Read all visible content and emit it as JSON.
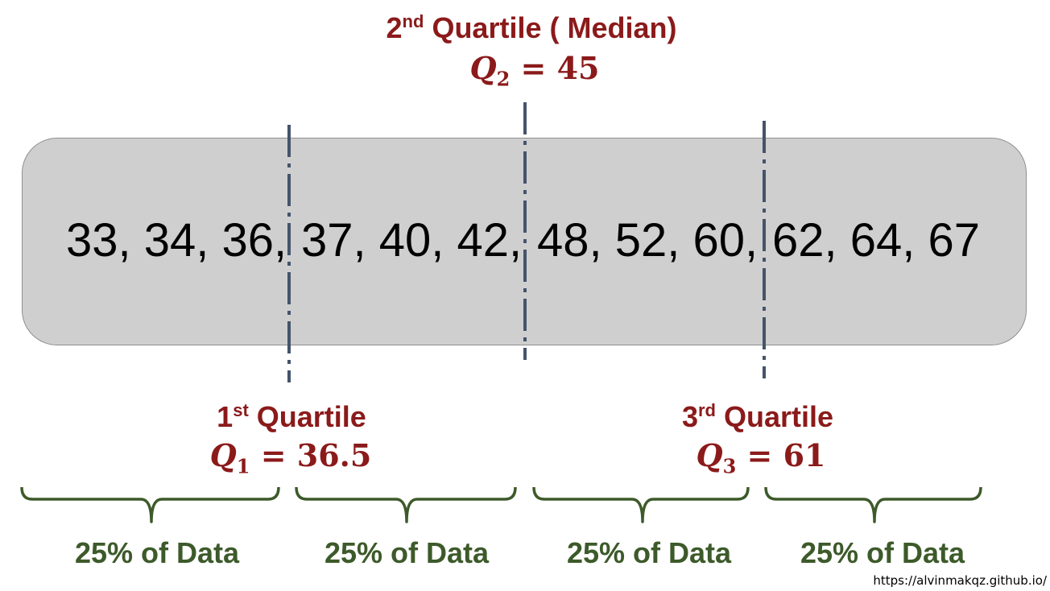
{
  "colors": {
    "title_red": "#8b1a1a",
    "brace_green": "#3d5a2a",
    "divider_blue": "#44546a",
    "box_gray": "#d0cfd0"
  },
  "quartiles": {
    "q2": {
      "ordinal": "2",
      "suffix": "nd",
      "title_rest": " Quartile ( Median)",
      "symbol": "Q",
      "index": "2",
      "value": "45"
    },
    "q1": {
      "ordinal": "1",
      "suffix": "st",
      "title_rest": " Quartile",
      "symbol": "Q",
      "index": "1",
      "value": "36.5"
    },
    "q3": {
      "ordinal": "3",
      "suffix": "rd",
      "title_rest": " Quartile",
      "symbol": "Q",
      "index": "3",
      "value": "61"
    }
  },
  "data_groups": [
    "33, 34, 36,",
    "37, 40, 42,",
    "48, 52, 60,",
    "62, 64, 67"
  ],
  "segments": [
    "25% of Data",
    "25% of Data",
    "25% of Data",
    "25% of Data"
  ],
  "source": "https://alvinmakqz.github.io/"
}
